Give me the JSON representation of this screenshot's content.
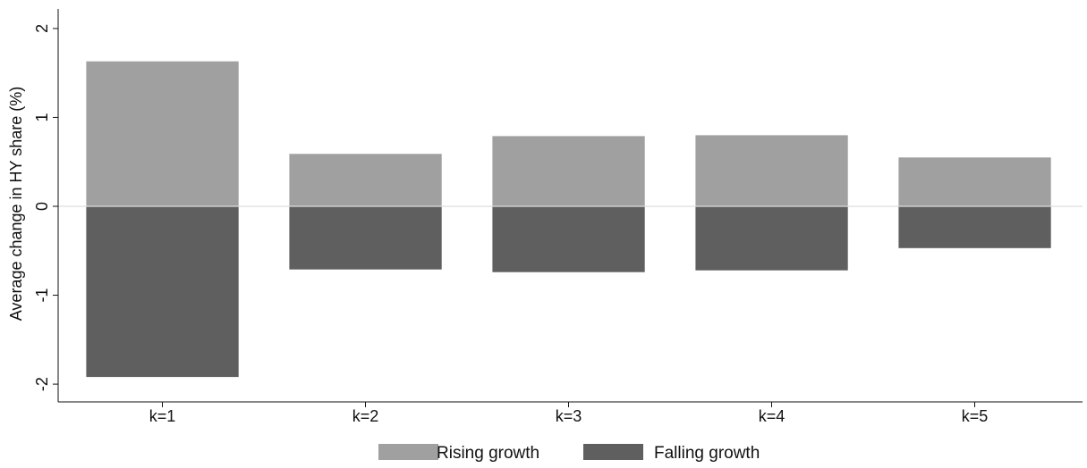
{
  "chart_data": {
    "type": "bar",
    "categories": [
      "k=1",
      "k=2",
      "k=3",
      "k=4",
      "k=5"
    ],
    "series": [
      {
        "name": "Rising growth",
        "values": [
          1.63,
          0.59,
          0.79,
          0.8,
          0.55
        ],
        "color": "#a0a0a0"
      },
      {
        "name": "Falling growth",
        "values": [
          -1.92,
          -0.71,
          -0.74,
          -0.72,
          -0.47
        ],
        "color": "#5f5f5f"
      }
    ],
    "ylabel": "Average change in HY share (%)",
    "xlabel": "",
    "ylim": [
      -2.2,
      2.2
    ],
    "yticks": [
      -2,
      -1,
      0,
      1,
      2
    ],
    "zero_line": true,
    "grid": false,
    "stacked": true,
    "legend_position": "bottom"
  }
}
